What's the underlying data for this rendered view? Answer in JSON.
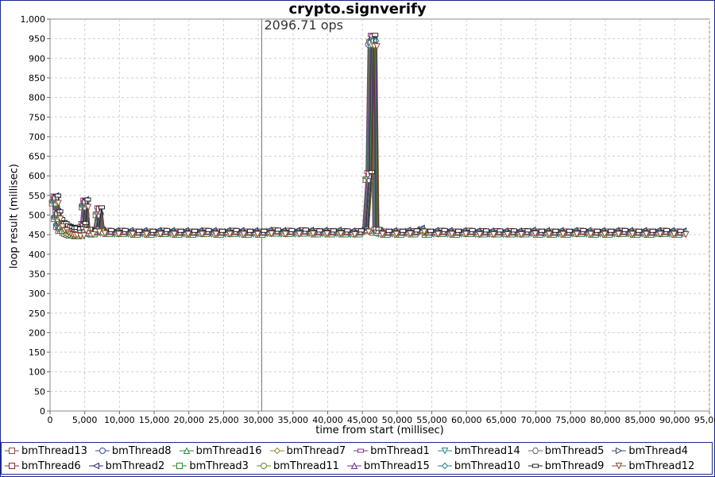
{
  "chart_data": {
    "type": "line",
    "title": "crypto.signverify",
    "xlabel": "time from start (millisec)",
    "ylabel": "loop result (millisec)",
    "xlim": [
      0,
      95000
    ],
    "ylim": [
      0,
      1000
    ],
    "x_ticks": [
      "0",
      "5,000",
      "10,000",
      "15,000",
      "20,000",
      "25,000",
      "30,000",
      "35,000",
      "40,000",
      "45,000",
      "50,000",
      "55,000",
      "60,000",
      "65,000",
      "70,000",
      "75,000",
      "80,000",
      "85,000",
      "90,000",
      "95,000"
    ],
    "y_ticks": [
      "0",
      "50",
      "100",
      "150",
      "200",
      "250",
      "300",
      "350",
      "400",
      "450",
      "500",
      "550",
      "600",
      "650",
      "700",
      "750",
      "800",
      "850",
      "900",
      "950",
      "1,000"
    ],
    "grid": true,
    "annotation": {
      "text": "2096.71 ops",
      "x": 30500
    },
    "legend_position": "bottom",
    "series": [
      {
        "name": "bmThread13",
        "marker": "square",
        "color": "#8c4a4a"
      },
      {
        "name": "bmThread8",
        "marker": "circle",
        "color": "#3a4a9c"
      },
      {
        "name": "bmThread16",
        "marker": "triangle-up",
        "color": "#2c8a3a"
      },
      {
        "name": "bmThread7",
        "marker": "diamond",
        "color": "#8a8a2c"
      },
      {
        "name": "bmThread1",
        "marker": "hbar",
        "color": "#8a2c8a"
      },
      {
        "name": "bmThread14",
        "marker": "triangle-down",
        "color": "#2c8a8a"
      },
      {
        "name": "bmThread5",
        "marker": "hexagon",
        "color": "#6a6a6a"
      },
      {
        "name": "bmThread4",
        "marker": "triangle-right",
        "color": "#3a4a6a"
      },
      {
        "name": "bmThread6",
        "marker": "square",
        "color": "#8a2c2c"
      },
      {
        "name": "bmThread2",
        "marker": "triangle-left",
        "color": "#2c2c6a"
      },
      {
        "name": "bmThread3",
        "marker": "square",
        "color": "#2c8a2c"
      },
      {
        "name": "bmThread11",
        "marker": "circle",
        "color": "#6a8a2c"
      },
      {
        "name": "bmThread15",
        "marker": "triangle-up",
        "color": "#6a2c8a"
      },
      {
        "name": "bmThread10",
        "marker": "diamond",
        "color": "#2c7a8a"
      },
      {
        "name": "bmThread9",
        "marker": "hbar",
        "color": "#222222"
      },
      {
        "name": "bmThread12",
        "marker": "triangle-down",
        "color": "#8a4a2c"
      }
    ],
    "points": {
      "x": [
        300,
        600,
        900,
        1200,
        1500,
        1800,
        2100,
        2400,
        2700,
        3000,
        3500,
        4000,
        4300,
        4600,
        4900,
        5300,
        5800,
        6200,
        6600,
        7000,
        8000,
        9000,
        10000,
        11000,
        12000,
        13000,
        14000,
        15000,
        16000,
        17000,
        18000,
        19000,
        20000,
        21000,
        22000,
        23000,
        24000,
        25000,
        26000,
        27000,
        28000,
        29000,
        30000,
        31000,
        32000,
        33000,
        34000,
        35000,
        36000,
        37000,
        38000,
        39000,
        40000,
        41000,
        42000,
        43000,
        44000,
        45000,
        45500,
        45800,
        46000,
        46200,
        46500,
        47000,
        48000,
        49000,
        50000,
        51000,
        52000,
        53000,
        54000,
        55000,
        56000,
        57000,
        58000,
        59000,
        60000,
        61000,
        62000,
        63000,
        64000,
        65000,
        66000,
        67000,
        68000,
        69000,
        70000,
        71000,
        72000,
        73000,
        74000,
        75000,
        76000,
        77000,
        78000,
        79000,
        80000,
        81000,
        82000,
        83000,
        84000,
        85000,
        86000,
        87000,
        88000,
        89000,
        90000,
        90700
      ],
      "y": [
        540,
        500,
        480,
        470,
        470,
        465,
        462,
        460,
        458,
        458,
        456,
        457,
        470,
        530,
        460,
        455,
        456,
        462,
        510,
        458,
        457,
        456,
        457,
        456,
        455,
        456,
        455,
        456,
        457,
        456,
        455,
        456,
        455,
        456,
        457,
        456,
        455,
        456,
        457,
        456,
        455,
        456,
        455,
        457,
        458,
        456,
        457,
        456,
        458,
        457,
        456,
        457,
        456,
        457,
        456,
        455,
        456,
        462,
        600,
        940,
        950,
        940,
        460,
        456,
        455,
        456,
        455,
        457,
        456,
        462,
        455,
        456,
        457,
        456,
        455,
        456,
        457,
        455,
        456,
        455,
        456,
        455,
        456,
        455,
        456,
        457,
        455,
        456,
        455,
        456,
        455,
        456,
        457,
        456,
        455,
        456,
        455,
        456,
        457,
        456,
        455,
        456,
        455,
        456,
        457,
        456,
        455,
        455
      ]
    },
    "spread": 6
  }
}
